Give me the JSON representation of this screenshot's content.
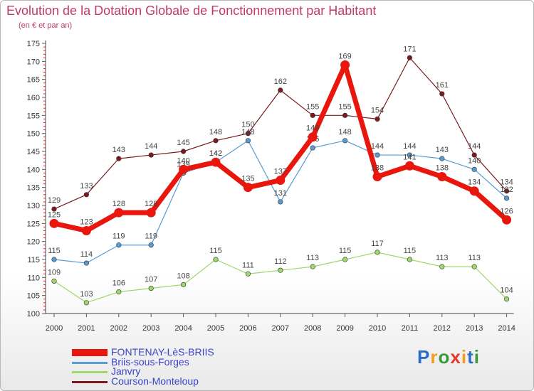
{
  "title": "Evolution de la Dotation Globale de Fonctionnement par Habitant",
  "subtitle": "(en € et par an)",
  "logo": {
    "text": "Proxiti",
    "letters": [
      {
        "ch": "P",
        "color": "#2b6cc4"
      },
      {
        "ch": "r",
        "color": "#f39c1f"
      },
      {
        "ch": "o",
        "color": "#3a9a3a"
      },
      {
        "ch": "x",
        "color": "#e8372c"
      },
      {
        "ch": "i",
        "color": "#f39c1f"
      },
      {
        "ch": "t",
        "color": "#2b6cc4"
      },
      {
        "ch": "i",
        "color": "#3a9a3a"
      }
    ]
  },
  "chart_data": {
    "type": "line",
    "title": "Evolution de la Dotation Globale de Fonctionnement par Habitant",
    "subtitle": "(en € et par an)",
    "x": [
      "2000",
      "2001",
      "2002",
      "2003",
      "2004",
      "2005",
      "2006",
      "2007",
      "2008",
      "2009",
      "2010",
      "2011",
      "2012",
      "2013",
      "2014"
    ],
    "ylim": [
      100,
      175
    ],
    "yticks": [
      100,
      105,
      110,
      115,
      120,
      125,
      130,
      135,
      140,
      145,
      150,
      155,
      160,
      165,
      170,
      175
    ],
    "grid": false,
    "legend_position": "bottom-left",
    "series": [
      {
        "name": "Courson-Monteloup",
        "color": "#7b1a1f",
        "values": [
          129,
          133,
          143,
          144,
          145,
          148,
          150,
          162,
          155,
          155,
          154,
          171,
          161,
          144,
          134
        ]
      },
      {
        "name": "Janvry",
        "color": "#9ed86a",
        "values": [
          109,
          103,
          106,
          107,
          108,
          115,
          111,
          112,
          113,
          115,
          117,
          115,
          113,
          113,
          104
        ]
      },
      {
        "name": "Briis-sous-Forges",
        "color": "#5a9bd0",
        "values": [
          115,
          114,
          119,
          119,
          139,
          142,
          148,
          131,
          146,
          148,
          144,
          144,
          143,
          140,
          132
        ]
      },
      {
        "name": "FONTENAY-LèS-BRIIS",
        "color": "#e8160c",
        "values": [
          125,
          123,
          128,
          128,
          140,
          142,
          135,
          137,
          149,
          169,
          138,
          141,
          138,
          134,
          126
        ]
      }
    ],
    "legend": [
      "FONTENAY-LèS-BRIIS",
      "Briis-sous-Forges",
      "Janvry",
      "Courson-Monteloup"
    ]
  }
}
